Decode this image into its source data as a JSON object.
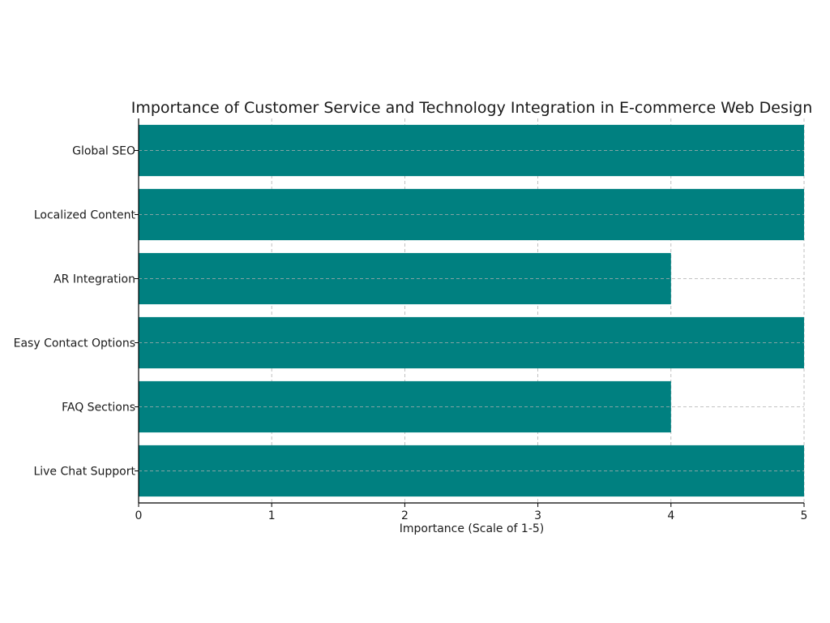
{
  "chart_data": {
    "type": "bar",
    "orientation": "horizontal",
    "title": "Importance of Customer Service and Technology Integration in E-commerce Web Design",
    "xlabel": "Importance (Scale of 1-5)",
    "ylabel": "",
    "categories": [
      "Live Chat Support",
      "FAQ Sections",
      "Easy Contact Options",
      "AR Integration",
      "Localized Content",
      "Global SEO"
    ],
    "values": [
      5,
      4,
      5,
      4,
      5,
      5
    ],
    "xlim": [
      0,
      5
    ],
    "xticks": [
      "0",
      "1",
      "2",
      "3",
      "4",
      "5"
    ],
    "grid": true,
    "legend": "none",
    "bar_color": "#008080"
  }
}
